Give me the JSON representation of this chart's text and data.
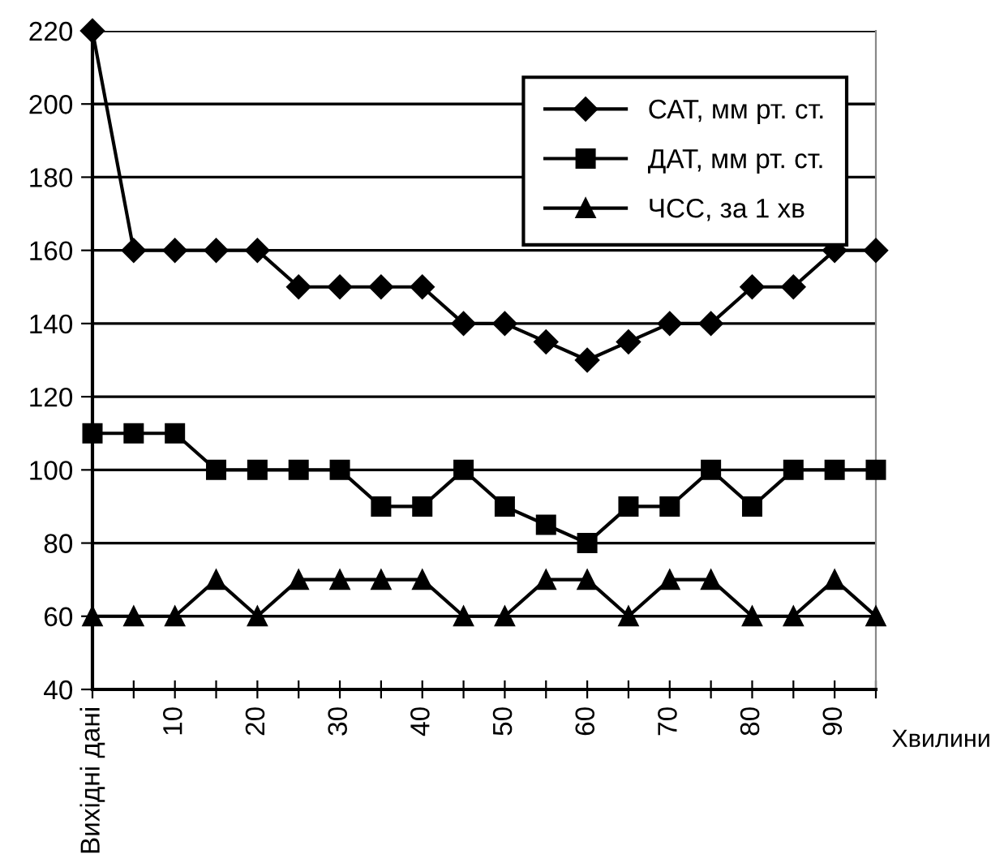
{
  "chart_data": {
    "type": "line",
    "xlabel": "Хвилини",
    "categories": [
      "Вихідні дані",
      null,
      "10",
      null,
      "20",
      null,
      "30",
      null,
      "40",
      null,
      "50",
      null,
      "60",
      null,
      "70",
      null,
      "80",
      null,
      "90",
      null
    ],
    "series": [
      {
        "name": "САТ, мм рт. ст.",
        "color": "#000000",
        "marker": "diamond",
        "values": [
          220,
          160,
          160,
          160,
          160,
          150,
          150,
          150,
          150,
          140,
          140,
          135,
          130,
          135,
          140,
          140,
          150,
          150,
          160,
          160
        ]
      },
      {
        "name": "ДАТ, мм рт. ст.",
        "color": "#000000",
        "marker": "square",
        "values": [
          110,
          110,
          110,
          100,
          100,
          100,
          100,
          90,
          90,
          100,
          90,
          85,
          80,
          90,
          90,
          100,
          90,
          100,
          100,
          100
        ]
      },
      {
        "name": "ЧСС, за 1 хв",
        "color": "#000000",
        "marker": "triangle",
        "values": [
          60,
          60,
          60,
          70,
          60,
          70,
          70,
          70,
          70,
          60,
          60,
          70,
          70,
          60,
          70,
          70,
          60,
          60,
          70,
          60
        ]
      }
    ],
    "ylim": [
      40,
      220
    ],
    "yticks": [
      40,
      60,
      80,
      100,
      120,
      140,
      160,
      180,
      200,
      220
    ],
    "grid": "y",
    "legend": "top right",
    "line_style": "solid"
  }
}
